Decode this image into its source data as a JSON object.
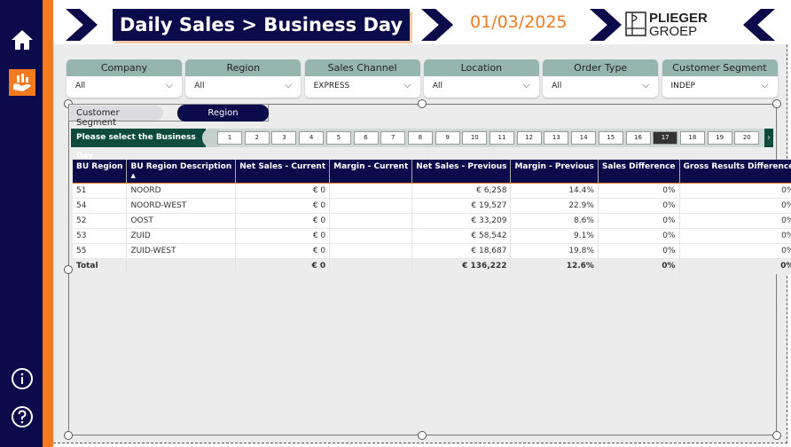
{
  "nav": {
    "home": "home-icon",
    "report": "hand-chart-icon",
    "info": "info-icon",
    "help": "help-icon"
  },
  "header": {
    "title": "Daily Sales > Business Day",
    "date": "01/03/2025",
    "logo_top": "PLIEGER",
    "logo_bottom": "GROEP"
  },
  "filters": [
    {
      "label": "Company",
      "value": "All"
    },
    {
      "label": "Region",
      "value": "All"
    },
    {
      "label": "Sales Channel",
      "value": "EXPRESS"
    },
    {
      "label": "Location",
      "value": "All"
    },
    {
      "label": "Order Type",
      "value": "All"
    },
    {
      "label": "Customer Segment",
      "value": "INDEP"
    }
  ],
  "toggle": {
    "option1": "Customer Segment",
    "option2": "Region",
    "selected": "Region"
  },
  "day_slicer": {
    "label": "Please select the Business Day",
    "days": [
      "1",
      "2",
      "3",
      "4",
      "5",
      "6",
      "7",
      "8",
      "9",
      "10",
      "11",
      "12",
      "13",
      "14",
      "15",
      "16",
      "17",
      "18",
      "19",
      "20"
    ],
    "selected": "17"
  },
  "table": {
    "columns": [
      "BU Region",
      "BU Region Description",
      "Net Sales - Current",
      "Margin - Current",
      "Net Sales - Previous",
      "Margin - Previous",
      "Sales Difference",
      "Gross Results Difference"
    ],
    "sort_indicator": "▲",
    "rows": [
      [
        "51",
        "NOORD",
        "€ 0",
        "",
        "€ 6,258",
        "14.4%",
        "0%",
        "0%"
      ],
      [
        "54",
        "NOORD-WEST",
        "€ 0",
        "",
        "€ 19,527",
        "22.9%",
        "0%",
        "0%"
      ],
      [
        "52",
        "OOST",
        "€ 0",
        "",
        "€ 33,209",
        "8.6%",
        "0%",
        "0%"
      ],
      [
        "53",
        "ZUID",
        "€ 0",
        "",
        "€ 58,542",
        "9.1%",
        "0%",
        "0%"
      ],
      [
        "55",
        "ZUID-WEST",
        "€ 0",
        "",
        "€ 18,687",
        "19.8%",
        "0%",
        "0%"
      ]
    ],
    "total": [
      "Total",
      "",
      "€ 0",
      "",
      "€ 136,222",
      "12.6%",
      "0%",
      "0%"
    ]
  },
  "colors": {
    "navy": "#0b0a4a",
    "orange": "#f47a20",
    "filter_header": "#96b5ad",
    "slicer_green": "#0d4b3d"
  }
}
